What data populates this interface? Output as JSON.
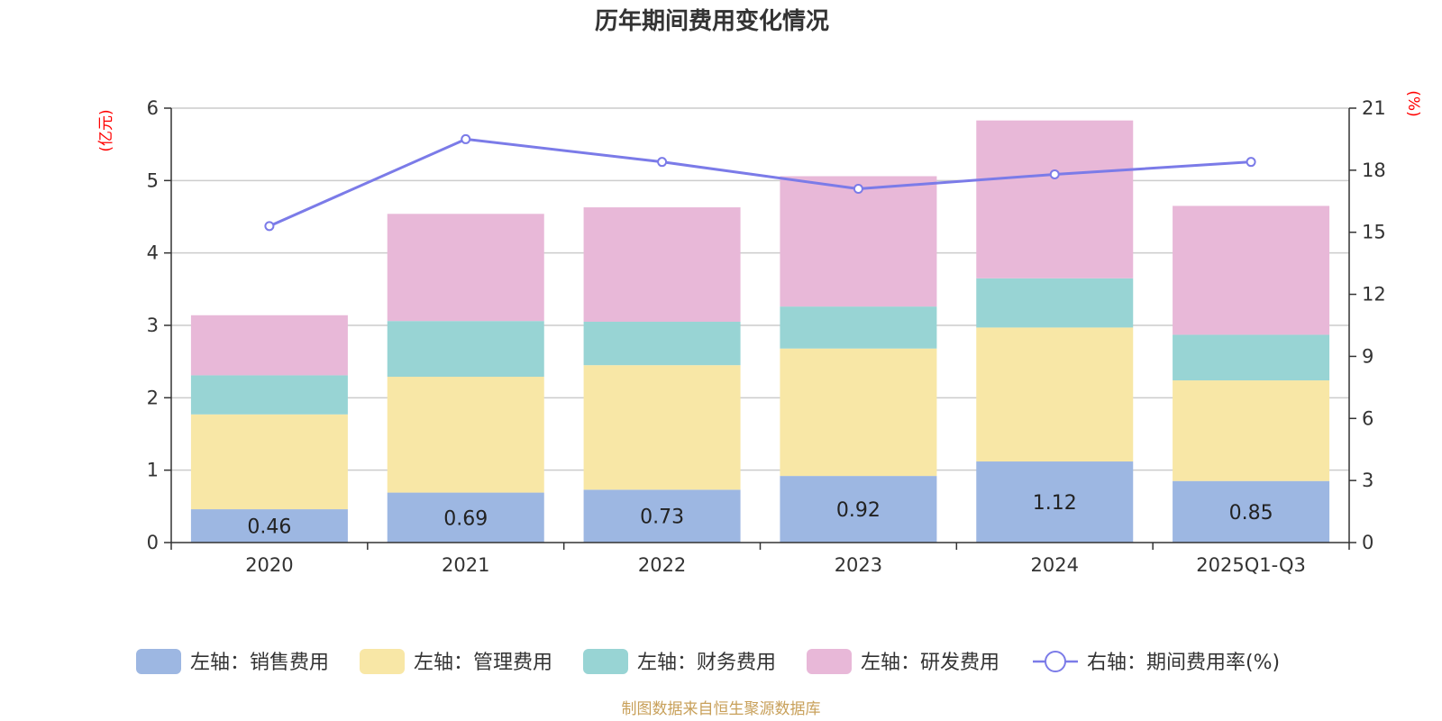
{
  "chart_data": {
    "type": "bar",
    "stacked": true,
    "title": "历年期间费用变化情况",
    "categories": [
      "2020",
      "2021",
      "2022",
      "2023",
      "2024",
      "2025Q1-Q3"
    ],
    "series": [
      {
        "name": "左轴：销售费用",
        "axis": "left",
        "color": "#9db7e2",
        "values": [
          0.46,
          0.69,
          0.73,
          0.92,
          1.12,
          0.85
        ]
      },
      {
        "name": "左轴：管理费用",
        "axis": "left",
        "color": "#f8e7a6",
        "values": [
          1.31,
          1.6,
          1.72,
          1.76,
          1.85,
          1.39
        ]
      },
      {
        "name": "左轴：财务费用",
        "axis": "left",
        "color": "#98d4d4",
        "values": [
          0.54,
          0.77,
          0.6,
          0.58,
          0.68,
          0.63
        ]
      },
      {
        "name": "左轴：研发费用",
        "axis": "left",
        "color": "#e8b8d8",
        "values": [
          0.83,
          1.48,
          1.58,
          1.8,
          2.18,
          1.78
        ]
      }
    ],
    "line_series": {
      "name": "右轴：期间费用率(%)",
      "axis": "right",
      "color": "#7b7be8",
      "values": [
        15.3,
        19.5,
        18.4,
        17.1,
        17.8,
        18.4
      ]
    },
    "left_axis": {
      "unit": "(亿元)",
      "ylim": [
        0,
        6
      ],
      "ticks": [
        "0",
        "1",
        "2",
        "3",
        "4",
        "5",
        "6"
      ]
    },
    "right_axis": {
      "unit": "(%)",
      "ylim": [
        0,
        21
      ],
      "ticks": [
        "0",
        "3",
        "6",
        "9",
        "12",
        "15",
        "18",
        "21"
      ]
    },
    "data_labels": [
      "0.46",
      "0.69",
      "0.73",
      "0.92",
      "1.12",
      "0.85"
    ],
    "legend_position": "bottom",
    "source": "制图数据来自恒生聚源数据库"
  }
}
